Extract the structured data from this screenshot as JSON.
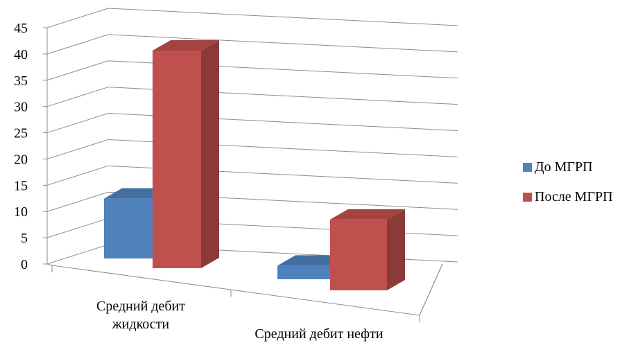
{
  "chart_data": {
    "type": "bar",
    "style": "3d-clustered-column",
    "categories": [
      [
        "Средний дебит",
        "жидкости"
      ],
      [
        "Средний дебит нефти"
      ]
    ],
    "series": [
      {
        "name": "До МГРП",
        "values": [
          11,
          2.5
        ],
        "color": "#4f81bd"
      },
      {
        "name": "После МГРП",
        "values": [
          40,
          13
        ],
        "color": "#c0504d"
      }
    ],
    "yticks": [
      0,
      5,
      10,
      15,
      20,
      25,
      30,
      35,
      40,
      45
    ],
    "ylim": [
      0,
      45
    ],
    "grid": true,
    "legend_position": "right"
  }
}
